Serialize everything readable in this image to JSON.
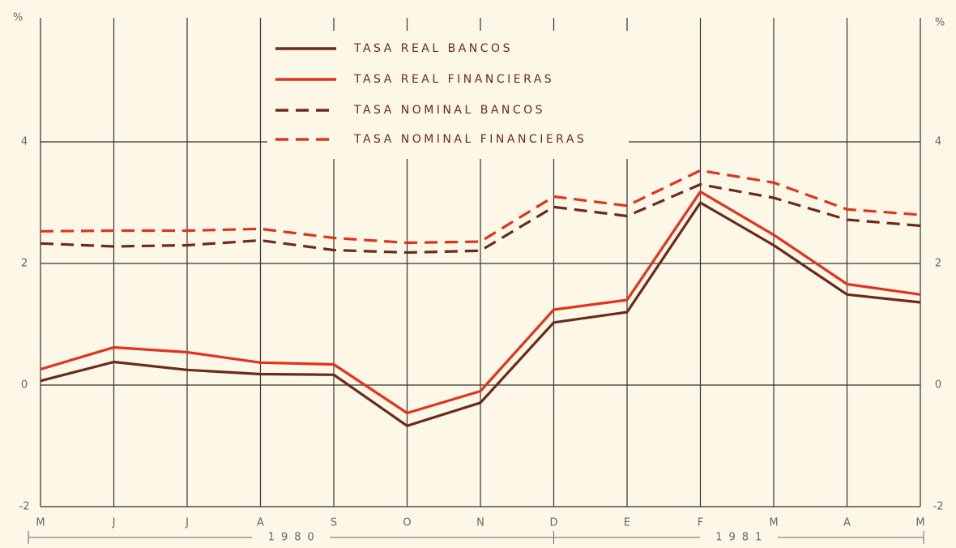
{
  "chart_data": {
    "type": "line",
    "y_label": "%",
    "categories": [
      "M",
      "J",
      "J",
      "A",
      "S",
      "O",
      "N",
      "D",
      "E",
      "F",
      "M",
      "A",
      "M"
    ],
    "x_groups": [
      "1980",
      "1981"
    ],
    "series": [
      {
        "name": "TASA REAL BANCOS",
        "color": "#6b2a1a",
        "dashed": false,
        "values": [
          0.07,
          0.38,
          0.25,
          0.18,
          0.17,
          -0.67,
          -0.29,
          1.03,
          1.2,
          3.0,
          2.3,
          1.49,
          1.36
        ]
      },
      {
        "name": "TASA REAL FINANCIERAS",
        "color": "#e3321c",
        "dashed": false,
        "values": [
          0.26,
          0.62,
          0.54,
          0.37,
          0.34,
          -0.46,
          -0.1,
          1.24,
          1.4,
          3.18,
          2.47,
          1.66,
          1.49
        ]
      },
      {
        "name": "TASA NOMINAL BANCOS",
        "color": "#6b2a1a",
        "dashed": true,
        "values": [
          2.33,
          2.28,
          2.3,
          2.38,
          2.22,
          2.18,
          2.21,
          2.93,
          2.78,
          3.3,
          3.08,
          2.72,
          2.62
        ]
      },
      {
        "name": "TASA NOMINAL FINANCIERAS",
        "color": "#e3321c",
        "dashed": true,
        "values": [
          2.53,
          2.54,
          2.54,
          2.57,
          2.42,
          2.34,
          2.36,
          3.1,
          2.95,
          3.53,
          3.33,
          2.89,
          2.8
        ]
      }
    ],
    "ylim": [
      -2,
      6
    ],
    "yticks": [
      -2,
      0,
      2,
      4
    ],
    "grid": true,
    "legend": "top"
  }
}
